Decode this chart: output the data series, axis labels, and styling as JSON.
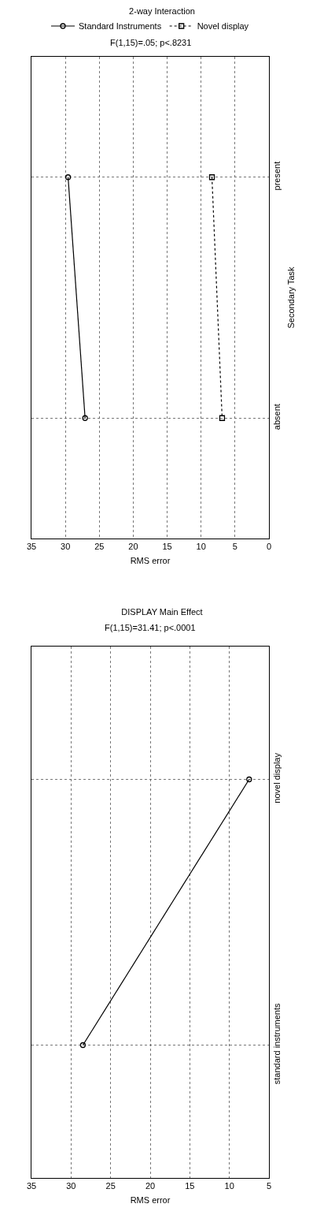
{
  "chart_data": [
    {
      "type": "line",
      "orientation": "horizontal",
      "title": "2-way Interaction",
      "annotations": [
        "F(1,15)=.05; p<.8231"
      ],
      "ylabel": "Secondary Task",
      "xlabel": "RMS error",
      "categories": [
        "present",
        "absent"
      ],
      "series": [
        {
          "name": "Standard Instruments",
          "color": "#000000",
          "values": [
            29.6,
            27.1
          ],
          "marker": "circle",
          "line_style": "solid"
        },
        {
          "name": "Novel display",
          "color": "#000000",
          "values": [
            8.4,
            6.9
          ],
          "marker": "square",
          "line_style": "dotted"
        }
      ],
      "xlim": [
        35,
        0
      ],
      "xticks": [
        35,
        30,
        25,
        20,
        15,
        10,
        5,
        0
      ],
      "grid": true,
      "legend": "top"
    },
    {
      "type": "line",
      "orientation": "horizontal",
      "title": "DISPLAY Main Effect",
      "annotations": [
        "F(1,15)=31.41; p<.0001"
      ],
      "xlabel": "RMS error",
      "categories": [
        "novel display",
        "standard instruments"
      ],
      "series": [
        {
          "color": "#000000",
          "values": [
            7.5,
            28.5
          ]
        }
      ],
      "xlim": [
        35,
        5
      ],
      "xticks": [
        35,
        30,
        25,
        20,
        15,
        10,
        5
      ],
      "grid": true,
      "marker": "circle",
      "line_style": "solid"
    }
  ]
}
